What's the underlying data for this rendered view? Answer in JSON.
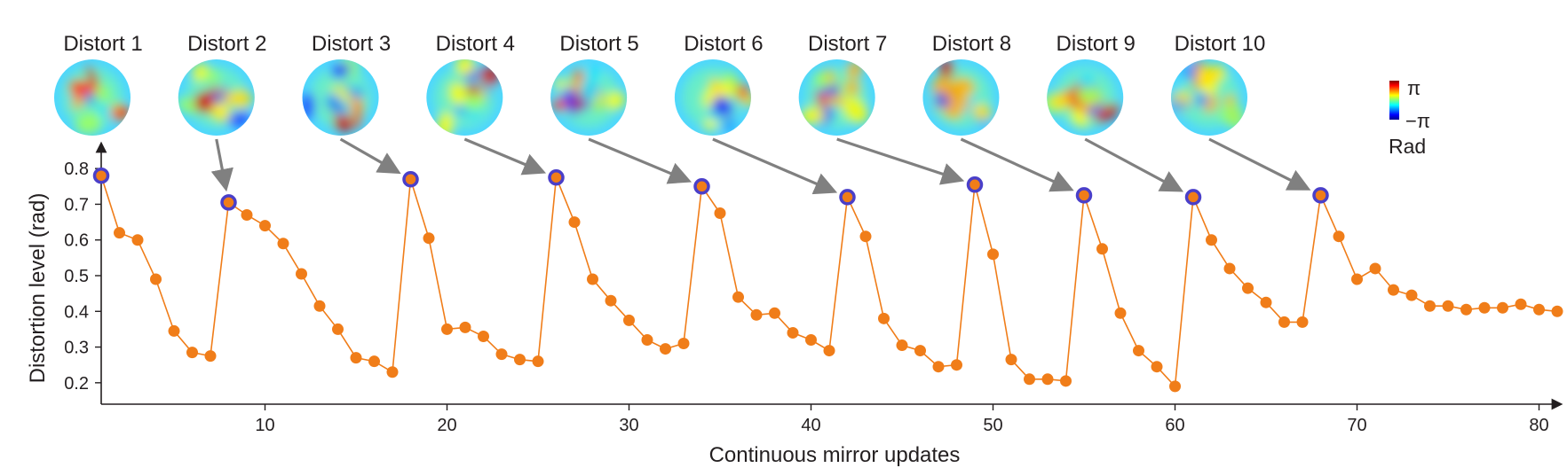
{
  "chart_data": {
    "type": "line",
    "title": "",
    "xlabel": "Continuous mirror updates",
    "ylabel": "Distortion level (rad)",
    "xlim": [
      1,
      81
    ],
    "ylim": [
      0.14,
      0.86
    ],
    "xticks": [
      10,
      20,
      30,
      40,
      50,
      60,
      70,
      80
    ],
    "yticks": [
      0.2,
      0.3,
      0.4,
      0.5,
      0.6,
      0.7,
      0.8
    ],
    "grid": false,
    "series": [
      {
        "color": "#f07d19",
        "marker_edge": "#4a3fc9",
        "x": [
          1,
          2,
          3,
          4,
          5,
          6,
          7,
          8,
          9,
          10,
          11,
          12,
          13,
          14,
          15,
          16,
          17,
          18,
          19,
          20,
          21,
          22,
          23,
          24,
          25,
          26,
          27,
          28,
          29,
          30,
          31,
          32,
          33,
          34,
          35,
          36,
          37,
          38,
          39,
          40,
          41,
          42,
          43,
          44,
          45,
          46,
          47,
          48,
          49,
          50,
          51,
          52,
          53,
          54,
          55,
          56,
          57,
          58,
          59,
          60,
          61,
          62,
          63,
          64,
          65,
          66,
          67,
          68,
          69,
          70,
          71,
          72,
          73,
          74,
          75,
          76,
          77,
          78,
          79,
          80,
          81
        ],
        "values": [
          0.78,
          0.62,
          0.6,
          0.49,
          0.345,
          0.285,
          0.275,
          0.705,
          0.67,
          0.64,
          0.59,
          0.505,
          0.415,
          0.35,
          0.27,
          0.26,
          0.23,
          0.77,
          0.605,
          0.35,
          0.355,
          0.33,
          0.28,
          0.265,
          0.26,
          0.775,
          0.65,
          0.49,
          0.43,
          0.375,
          0.32,
          0.295,
          0.31,
          0.75,
          0.675,
          0.44,
          0.39,
          0.395,
          0.34,
          0.32,
          0.29,
          0.72,
          0.61,
          0.38,
          0.305,
          0.29,
          0.245,
          0.25,
          0.755,
          0.56,
          0.265,
          0.21,
          0.21,
          0.205,
          0.725,
          0.575,
          0.395,
          0.29,
          0.245,
          0.19,
          0.72,
          0.6,
          0.52,
          0.465,
          0.425,
          0.37,
          0.37,
          0.725,
          0.61,
          0.49,
          0.52,
          0.46,
          0.445,
          0.415,
          0.415,
          0.405,
          0.41,
          0.41,
          0.42,
          0.405,
          0.4
        ]
      }
    ],
    "highlighted_updates": [
      1,
      8,
      18,
      26,
      34,
      42,
      49,
      55,
      61,
      68
    ],
    "distortions": [
      {
        "label": "Distort 1",
        "update": 1
      },
      {
        "label": "Distort 2",
        "update": 8
      },
      {
        "label": "Distort 3",
        "update": 18
      },
      {
        "label": "Distort 4",
        "update": 26
      },
      {
        "label": "Distort 5",
        "update": 34
      },
      {
        "label": "Distort 6",
        "update": 42
      },
      {
        "label": "Distort 7",
        "update": 49
      },
      {
        "label": "Distort 8",
        "update": 55
      },
      {
        "label": "Distort 9",
        "update": 61
      },
      {
        "label": "Distort 10",
        "update": 68
      }
    ],
    "colorbar": {
      "max_label": "π",
      "min_label": "−π",
      "unit_label": "Rad",
      "colormap": "jet"
    }
  }
}
